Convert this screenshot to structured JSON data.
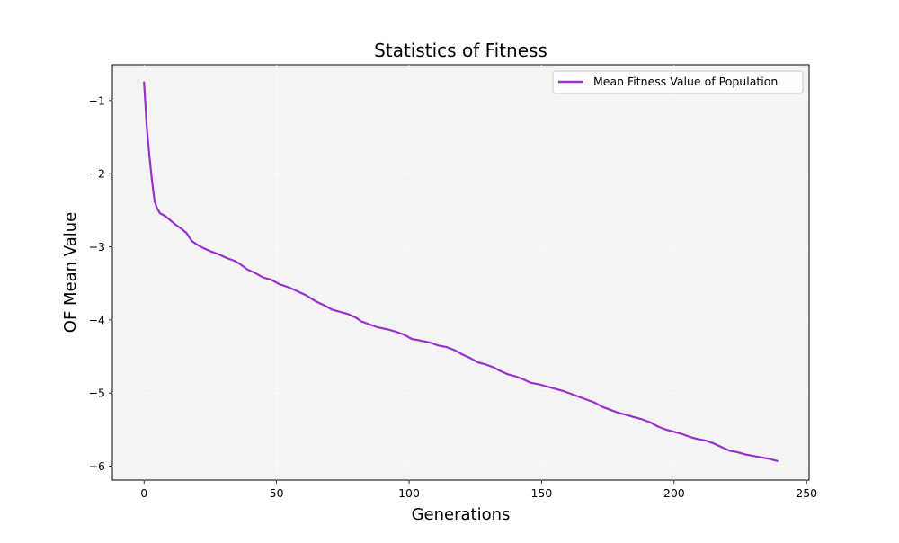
{
  "chart_data": {
    "type": "line",
    "title": "Statistics of Fitness",
    "xlabel": "Generations",
    "ylabel": "OF Mean Value",
    "xlim": [
      -11.95,
      250.95
    ],
    "ylim": [
      -6.19,
      -0.51
    ],
    "xticks": [
      0,
      50,
      100,
      150,
      200,
      250
    ],
    "yticks": [
      -1,
      -2,
      -3,
      -4,
      -5,
      -6
    ],
    "grid": true,
    "legend_position": "top-right",
    "series": [
      {
        "name": "Mean Fitness Value of Population",
        "color": "#9932cc",
        "points": [
          [
            0,
            -0.75
          ],
          [
            1,
            -1.35
          ],
          [
            2,
            -1.75
          ],
          [
            3,
            -2.1
          ],
          [
            4,
            -2.38
          ],
          [
            5,
            -2.48
          ],
          [
            6,
            -2.54
          ],
          [
            8,
            -2.58
          ],
          [
            10,
            -2.64
          ],
          [
            12,
            -2.7
          ],
          [
            14,
            -2.75
          ],
          [
            16,
            -2.81
          ],
          [
            18,
            -2.92
          ],
          [
            20,
            -2.97
          ],
          [
            22,
            -3.01
          ],
          [
            25,
            -3.06
          ],
          [
            28,
            -3.1
          ],
          [
            31,
            -3.15
          ],
          [
            34,
            -3.19
          ],
          [
            36,
            -3.23
          ],
          [
            39,
            -3.31
          ],
          [
            42,
            -3.36
          ],
          [
            45,
            -3.42
          ],
          [
            48,
            -3.45
          ],
          [
            51,
            -3.51
          ],
          [
            55,
            -3.56
          ],
          [
            58,
            -3.61
          ],
          [
            61,
            -3.66
          ],
          [
            65,
            -3.75
          ],
          [
            68,
            -3.8
          ],
          [
            71,
            -3.86
          ],
          [
            74,
            -3.89
          ],
          [
            77,
            -3.92
          ],
          [
            80,
            -3.97
          ],
          [
            82,
            -4.02
          ],
          [
            85,
            -4.06
          ],
          [
            88,
            -4.1
          ],
          [
            92,
            -4.13
          ],
          [
            95,
            -4.16
          ],
          [
            98,
            -4.2
          ],
          [
            101,
            -4.26
          ],
          [
            104,
            -4.28
          ],
          [
            108,
            -4.31
          ],
          [
            111,
            -4.35
          ],
          [
            114,
            -4.37
          ],
          [
            117,
            -4.41
          ],
          [
            120,
            -4.47
          ],
          [
            123,
            -4.52
          ],
          [
            126,
            -4.58
          ],
          [
            129,
            -4.61
          ],
          [
            132,
            -4.65
          ],
          [
            134,
            -4.69
          ],
          [
            137,
            -4.74
          ],
          [
            140,
            -4.77
          ],
          [
            143,
            -4.81
          ],
          [
            146,
            -4.86
          ],
          [
            149,
            -4.88
          ],
          [
            152,
            -4.91
          ],
          [
            155,
            -4.94
          ],
          [
            158,
            -4.97
          ],
          [
            161,
            -5.01
          ],
          [
            164,
            -5.05
          ],
          [
            167,
            -5.09
          ],
          [
            170,
            -5.13
          ],
          [
            173,
            -5.19
          ],
          [
            176,
            -5.23
          ],
          [
            179,
            -5.27
          ],
          [
            182,
            -5.3
          ],
          [
            185,
            -5.33
          ],
          [
            188,
            -5.36
          ],
          [
            191,
            -5.4
          ],
          [
            194,
            -5.46
          ],
          [
            197,
            -5.5
          ],
          [
            200,
            -5.53
          ],
          [
            203,
            -5.56
          ],
          [
            206,
            -5.6
          ],
          [
            209,
            -5.63
          ],
          [
            212,
            -5.65
          ],
          [
            215,
            -5.69
          ],
          [
            218,
            -5.74
          ],
          [
            221,
            -5.79
          ],
          [
            224,
            -5.81
          ],
          [
            227,
            -5.84
          ],
          [
            230,
            -5.86
          ],
          [
            233,
            -5.88
          ],
          [
            236,
            -5.9
          ],
          [
            239,
            -5.93
          ]
        ]
      }
    ]
  }
}
